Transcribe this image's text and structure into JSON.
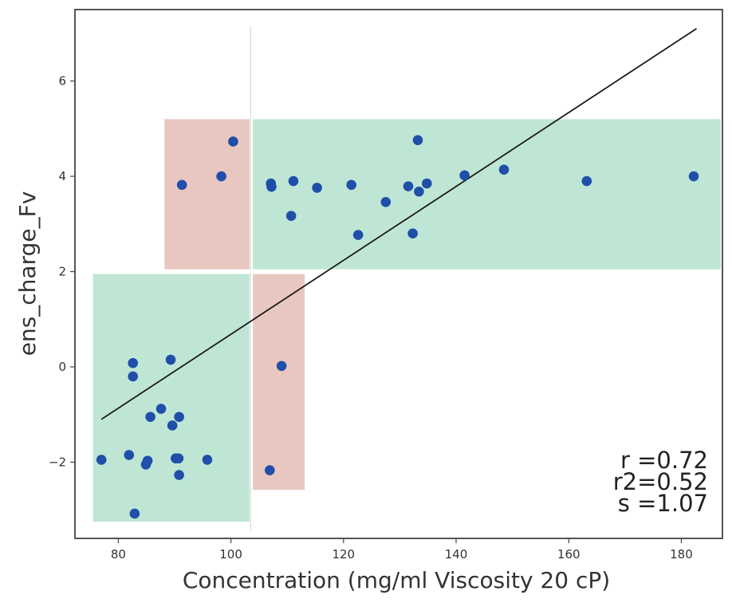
{
  "chart_data": {
    "type": "scatter",
    "xlabel": "Concentration (mg/ml Viscosity 20 cP)",
    "ylabel": "ens_charge_Fv",
    "xlim": [
      72.3,
      187.3
    ],
    "ylim": [
      -3.6,
      7.5
    ],
    "xticks": [
      80,
      100,
      120,
      140,
      160,
      180
    ],
    "yticks": [
      -2,
      0,
      2,
      4,
      6
    ],
    "ytick_labels": [
      "−2",
      "0",
      "2",
      "4",
      "6"
    ],
    "threshold_x": 103.5,
    "threshold_y": 2.0,
    "regions": [
      {
        "name": "region-true-negative",
        "color": "#bfe6d5",
        "x": [
          75.5,
          103.3
        ],
        "y": [
          -3.25,
          1.95
        ]
      },
      {
        "name": "region-false-positive",
        "color": "#e9c7c1",
        "x": [
          88.2,
          103.3
        ],
        "y": [
          2.05,
          5.2
        ]
      },
      {
        "name": "region-false-negative",
        "color": "#e9c7c1",
        "x": [
          103.9,
          113.1
        ],
        "y": [
          -2.58,
          1.95
        ]
      },
      {
        "name": "region-true-positive",
        "color": "#bfe6d5",
        "x": [
          103.9,
          187.0
        ],
        "y": [
          2.05,
          5.2
        ]
      }
    ],
    "series": [
      {
        "name": "samples",
        "color": "#1f4fa8",
        "points": [
          [
            77.0,
            -1.95
          ],
          [
            81.9,
            -1.85
          ],
          [
            82.6,
            0.08
          ],
          [
            82.6,
            -0.2
          ],
          [
            82.9,
            -3.08
          ],
          [
            84.9,
            -2.05
          ],
          [
            85.2,
            -1.97
          ],
          [
            85.7,
            -1.05
          ],
          [
            87.6,
            -0.88
          ],
          [
            89.3,
            0.15
          ],
          [
            89.6,
            -1.23
          ],
          [
            90.2,
            -1.92
          ],
          [
            90.7,
            -1.92
          ],
          [
            90.8,
            -1.05
          ],
          [
            90.8,
            -2.27
          ],
          [
            95.8,
            -1.95
          ],
          [
            91.3,
            3.82
          ],
          [
            98.3,
            4.0
          ],
          [
            100.4,
            4.73
          ],
          [
            107.1,
            3.85
          ],
          [
            107.2,
            3.78
          ],
          [
            106.9,
            -2.17
          ],
          [
            109.0,
            0.02
          ],
          [
            110.7,
            3.17
          ],
          [
            111.1,
            3.9
          ],
          [
            115.3,
            3.76
          ],
          [
            121.4,
            3.82
          ],
          [
            122.6,
            2.77
          ],
          [
            127.5,
            3.46
          ],
          [
            131.5,
            3.79
          ],
          [
            132.3,
            2.8
          ],
          [
            133.2,
            4.76
          ],
          [
            133.4,
            3.68
          ],
          [
            134.8,
            3.85
          ],
          [
            141.5,
            4.02
          ],
          [
            148.5,
            4.14
          ],
          [
            163.2,
            3.9
          ],
          [
            182.2,
            4.0
          ]
        ]
      }
    ],
    "fit_line": {
      "color": "#1a1a1a",
      "x": [
        77.0,
        182.7
      ],
      "y": [
        -1.1,
        7.1
      ]
    },
    "annotations": [
      "r =0.72",
      "r2=0.52",
      "s =1.07"
    ]
  }
}
